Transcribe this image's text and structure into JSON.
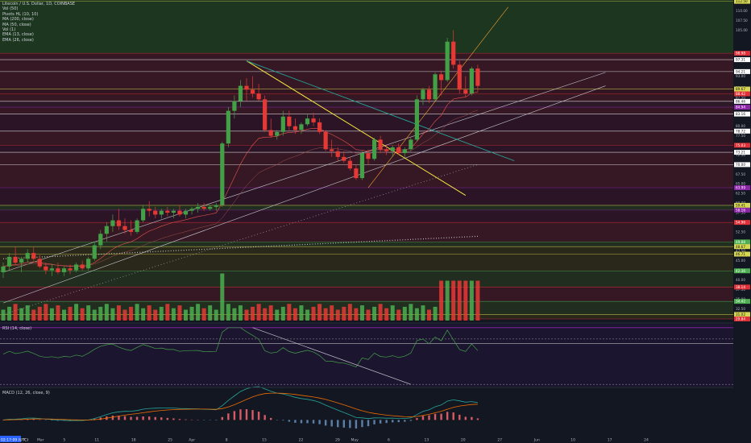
{
  "chart_data": {
    "type": "candlestick",
    "title": "Litecoin / U.S. Dollar, 1D, COINBASE",
    "indicators": [
      "Vol (50)",
      "Pivots HL (10, 10)",
      "MA (200, close)",
      "MA (50, close)",
      "Vol (1)",
      "EMA (13, close)",
      "EMA (26, close)"
    ],
    "price_axis": {
      "ticks": [
        "110.00",
        "107.50",
        "105.00",
        "97.50",
        "93.00",
        "90.00",
        "87.50",
        "85.00",
        "80.00",
        "77.50",
        "75.00",
        "72.50",
        "70.00",
        "67.50",
        "65.00",
        "62.50",
        "60.00",
        "57.50",
        "55.00",
        "52.50",
        "50.00",
        "47.50",
        "45.00",
        "42.50",
        "40.00",
        "37.50",
        "35.00",
        "32.50",
        "30.00"
      ],
      "ylim": [
        29.0,
        112.0
      ]
    },
    "price_badges": [
      {
        "value": "112.50",
        "color": "#d6d64f"
      },
      {
        "value": "98.98",
        "color": "#e02f37"
      },
      {
        "value": "97.31",
        "color": "#ffffff"
      },
      {
        "value": "94.21",
        "color": "#ffffff"
      },
      {
        "value": "89.67",
        "color": "#d6d64f"
      },
      {
        "value": "88.42",
        "color": "#e02f37"
      },
      {
        "value": "86.46",
        "color": "#ffffff"
      },
      {
        "value": "84.94",
        "color": "#8e24aa"
      },
      {
        "value": "83.16",
        "color": "#ffffff"
      },
      {
        "value": "78.72",
        "color": "#ffffff"
      },
      {
        "value": "75.03",
        "color": "#e02f37"
      },
      {
        "value": "73.21",
        "color": "#ffffff"
      },
      {
        "value": "70.00",
        "color": "#ffffff"
      },
      {
        "value": "63.99",
        "color": "#8e24aa"
      },
      {
        "value": "59.41",
        "color": "#d6d64f"
      },
      {
        "value": "58.16",
        "color": "#8e24aa"
      },
      {
        "value": "54.96",
        "color": "#e02f37"
      },
      {
        "value": "49.88",
        "color": "#4caf50"
      },
      {
        "value": "48.67",
        "color": "#d6d64f"
      },
      {
        "value": "46.71",
        "color": "#d6d64f"
      },
      {
        "value": "42.36",
        "color": "#4caf50"
      },
      {
        "value": "38.14",
        "color": "#e02f37"
      },
      {
        "value": "34.42",
        "color": "#4caf50"
      },
      {
        "value": "31.02",
        "color": "#d6d64f"
      },
      {
        "value": "29.84",
        "color": "#e02f37"
      }
    ],
    "candles": [
      {
        "o": 42.0,
        "h": 44.5,
        "l": 40.5,
        "c": 43.5
      },
      {
        "o": 43.5,
        "h": 47.0,
        "l": 42.5,
        "c": 46.0
      },
      {
        "o": 46.0,
        "h": 48.5,
        "l": 44.0,
        "c": 44.5
      },
      {
        "o": 44.5,
        "h": 46.0,
        "l": 42.0,
        "c": 45.5
      },
      {
        "o": 45.5,
        "h": 48.0,
        "l": 44.5,
        "c": 47.0
      },
      {
        "o": 47.0,
        "h": 48.5,
        "l": 45.0,
        "c": 45.5
      },
      {
        "o": 45.5,
        "h": 46.5,
        "l": 43.0,
        "c": 43.5
      },
      {
        "o": 43.5,
        "h": 44.5,
        "l": 41.5,
        "c": 42.5
      },
      {
        "o": 42.5,
        "h": 44.0,
        "l": 41.0,
        "c": 43.0
      },
      {
        "o": 43.0,
        "h": 44.5,
        "l": 41.5,
        "c": 42.0
      },
      {
        "o": 42.0,
        "h": 43.5,
        "l": 41.0,
        "c": 43.0
      },
      {
        "o": 43.0,
        "h": 44.0,
        "l": 41.5,
        "c": 42.5
      },
      {
        "o": 42.5,
        "h": 44.5,
        "l": 42.0,
        "c": 44.0
      },
      {
        "o": 44.0,
        "h": 45.0,
        "l": 42.5,
        "c": 43.0
      },
      {
        "o": 43.0,
        "h": 46.0,
        "l": 42.5,
        "c": 45.5
      },
      {
        "o": 45.5,
        "h": 50.0,
        "l": 45.0,
        "c": 49.0
      },
      {
        "o": 49.0,
        "h": 53.0,
        "l": 48.0,
        "c": 52.0
      },
      {
        "o": 52.0,
        "h": 55.0,
        "l": 50.0,
        "c": 54.0
      },
      {
        "o": 54.0,
        "h": 57.0,
        "l": 52.5,
        "c": 55.5
      },
      {
        "o": 55.5,
        "h": 58.5,
        "l": 53.0,
        "c": 54.0
      },
      {
        "o": 54.0,
        "h": 56.0,
        "l": 52.0,
        "c": 53.0
      },
      {
        "o": 53.0,
        "h": 55.5,
        "l": 51.5,
        "c": 52.5
      },
      {
        "o": 52.5,
        "h": 56.0,
        "l": 52.0,
        "c": 55.5
      },
      {
        "o": 55.5,
        "h": 59.5,
        "l": 55.0,
        "c": 58.5
      },
      {
        "o": 58.5,
        "h": 60.5,
        "l": 56.5,
        "c": 58.0
      },
      {
        "o": 58.0,
        "h": 59.0,
        "l": 56.0,
        "c": 57.0
      },
      {
        "o": 57.0,
        "h": 58.5,
        "l": 56.0,
        "c": 58.0
      },
      {
        "o": 58.0,
        "h": 59.0,
        "l": 56.5,
        "c": 57.5
      },
      {
        "o": 57.5,
        "h": 58.5,
        "l": 56.0,
        "c": 58.0
      },
      {
        "o": 58.0,
        "h": 59.5,
        "l": 56.5,
        "c": 57.0
      },
      {
        "o": 57.0,
        "h": 58.5,
        "l": 56.0,
        "c": 58.0
      },
      {
        "o": 58.0,
        "h": 59.0,
        "l": 57.0,
        "c": 58.5
      },
      {
        "o": 58.5,
        "h": 60.0,
        "l": 57.5,
        "c": 59.0
      },
      {
        "o": 59.0,
        "h": 60.0,
        "l": 58.0,
        "c": 58.5
      },
      {
        "o": 58.5,
        "h": 59.5,
        "l": 58.0,
        "c": 59.0
      },
      {
        "o": 59.0,
        "h": 60.0,
        "l": 58.0,
        "c": 59.5
      },
      {
        "o": 59.5,
        "h": 76.0,
        "l": 59.0,
        "c": 75.5
      },
      {
        "o": 75.5,
        "h": 85.0,
        "l": 74.5,
        "c": 84.0
      },
      {
        "o": 84.0,
        "h": 88.0,
        "l": 82.0,
        "c": 86.5
      },
      {
        "o": 86.5,
        "h": 92.0,
        "l": 85.0,
        "c": 90.5
      },
      {
        "o": 90.5,
        "h": 92.5,
        "l": 86.5,
        "c": 89.5
      },
      {
        "o": 89.5,
        "h": 93.0,
        "l": 87.5,
        "c": 88.5
      },
      {
        "o": 88.5,
        "h": 91.0,
        "l": 86.5,
        "c": 87.0
      },
      {
        "o": 87.0,
        "h": 88.0,
        "l": 78.5,
        "c": 79.0
      },
      {
        "o": 79.0,
        "h": 82.0,
        "l": 77.0,
        "c": 77.5
      },
      {
        "o": 77.5,
        "h": 79.0,
        "l": 76.5,
        "c": 78.5
      },
      {
        "o": 78.5,
        "h": 84.0,
        "l": 77.5,
        "c": 82.5
      },
      {
        "o": 82.5,
        "h": 84.0,
        "l": 79.0,
        "c": 80.0
      },
      {
        "o": 80.0,
        "h": 82.0,
        "l": 78.0,
        "c": 79.0
      },
      {
        "o": 79.0,
        "h": 81.0,
        "l": 78.0,
        "c": 80.5
      },
      {
        "o": 80.5,
        "h": 83.0,
        "l": 80.0,
        "c": 82.0
      },
      {
        "o": 82.0,
        "h": 83.5,
        "l": 80.0,
        "c": 81.0
      },
      {
        "o": 81.0,
        "h": 82.0,
        "l": 78.0,
        "c": 78.5
      },
      {
        "o": 78.5,
        "h": 79.0,
        "l": 73.5,
        "c": 74.0
      },
      {
        "o": 74.0,
        "h": 76.5,
        "l": 72.0,
        "c": 73.5
      },
      {
        "o": 73.5,
        "h": 74.5,
        "l": 71.0,
        "c": 72.0
      },
      {
        "o": 72.0,
        "h": 73.5,
        "l": 70.5,
        "c": 71.0
      },
      {
        "o": 71.0,
        "h": 72.0,
        "l": 68.5,
        "c": 69.0
      },
      {
        "o": 69.0,
        "h": 70.0,
        "l": 66.0,
        "c": 66.5
      },
      {
        "o": 66.5,
        "h": 73.5,
        "l": 66.0,
        "c": 73.0
      },
      {
        "o": 73.0,
        "h": 74.0,
        "l": 70.0,
        "c": 71.5
      },
      {
        "o": 71.5,
        "h": 77.0,
        "l": 71.0,
        "c": 76.5
      },
      {
        "o": 76.5,
        "h": 77.5,
        "l": 73.0,
        "c": 74.0
      },
      {
        "o": 74.0,
        "h": 75.0,
        "l": 72.5,
        "c": 73.5
      },
      {
        "o": 73.5,
        "h": 75.0,
        "l": 72.0,
        "c": 74.5
      },
      {
        "o": 74.5,
        "h": 75.5,
        "l": 72.5,
        "c": 73.0
      },
      {
        "o": 73.0,
        "h": 74.5,
        "l": 72.0,
        "c": 74.0
      },
      {
        "o": 74.0,
        "h": 77.0,
        "l": 73.5,
        "c": 76.5
      },
      {
        "o": 76.5,
        "h": 88.0,
        "l": 76.0,
        "c": 87.0
      },
      {
        "o": 87.0,
        "h": 90.0,
        "l": 85.5,
        "c": 89.5
      },
      {
        "o": 89.5,
        "h": 90.5,
        "l": 86.0,
        "c": 87.0
      },
      {
        "o": 87.0,
        "h": 94.0,
        "l": 86.5,
        "c": 93.5
      },
      {
        "o": 93.5,
        "h": 94.5,
        "l": 88.0,
        "c": 92.0
      },
      {
        "o": 92.0,
        "h": 103.0,
        "l": 91.5,
        "c": 102.0
      },
      {
        "o": 102.0,
        "h": 105.0,
        "l": 95.0,
        "c": 96.0
      },
      {
        "o": 96.0,
        "h": 97.0,
        "l": 88.5,
        "c": 89.5
      },
      {
        "o": 89.5,
        "h": 93.0,
        "l": 87.5,
        "c": 88.5
      },
      {
        "o": 88.5,
        "h": 95.5,
        "l": 88.0,
        "c": 95.0
      },
      {
        "o": 95.0,
        "h": 96.0,
        "l": 89.0,
        "c": 90.5
      }
    ],
    "x_axis_ticks": [
      "25",
      "Mar",
      "5",
      "11",
      "18",
      "25",
      "Apr",
      "8",
      "15",
      "22",
      "29",
      "May",
      "6",
      "13",
      "20",
      "27",
      "Jun",
      "10",
      "17",
      "24"
    ],
    "rsi": {
      "name": "RSI (14, close)",
      "ticks": [
        "80.00",
        "70.00",
        "60.00",
        "50.00",
        "40.00",
        "30.00"
      ],
      "ylim": [
        28,
        82
      ],
      "last": "62.5877",
      "level": "92.3246"
    },
    "macd": {
      "name": "MACD (12, 26, close, 9)",
      "ticks": [
        "7.5000",
        "5.0000",
        "2.5000",
        "0.0000",
        "-2.5000"
      ],
      "ylim": [
        -4,
        8.5
      ]
    },
    "corner_time": "02:17:09 (UTC)",
    "grid": false,
    "legend_position": "top-left"
  }
}
